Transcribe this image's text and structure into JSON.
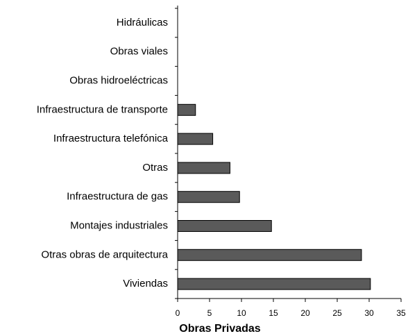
{
  "chart_data": {
    "type": "bar",
    "orientation": "horizontal",
    "title": "Obras Privadas",
    "categories": [
      "Hidráulicas",
      "Obras viales",
      "Obras hidroeléctricas",
      "Infraestructura de transporte",
      "Infraestructura telefónica",
      "Otras",
      "Infraestructura de gas",
      "Montajes industriales",
      "Otras obras de arquitectura",
      "Viviendas"
    ],
    "values": [
      0,
      0,
      0,
      2.8,
      5.5,
      8.2,
      9.7,
      14.7,
      28.8,
      30.2
    ],
    "color": "#5a5a5a",
    "xlim": [
      0,
      35
    ],
    "xticks": [
      0,
      5,
      10,
      15,
      20,
      25,
      30,
      35
    ],
    "grid": false
  }
}
